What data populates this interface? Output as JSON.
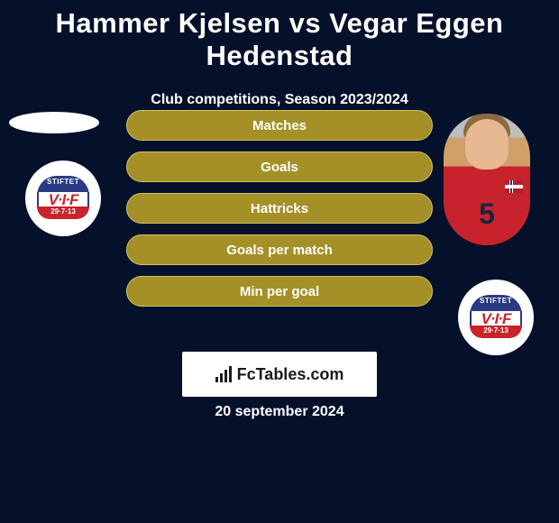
{
  "title": "Hammer Kjelsen vs Vegar Eggen Hedenstad",
  "subtitle": "Club competitions, Season 2023/2024",
  "stats": {
    "items": [
      {
        "label": "Matches"
      },
      {
        "label": "Goals"
      },
      {
        "label": "Hattricks"
      },
      {
        "label": "Goals per match"
      },
      {
        "label": "Min per goal"
      }
    ],
    "pill_bg": "#a59027",
    "pill_border": "#d3c26a",
    "pill_text_color": "#ffffff"
  },
  "left": {
    "club_badge": {
      "top_text": "STIFTET",
      "mid_text": "V·I·F",
      "bottom_text": "29·7·13",
      "top_color": "#2a3a82",
      "mid_color": "#c8232c",
      "bottom_color": "#c8232c"
    }
  },
  "right": {
    "player": {
      "shirt_number": "5",
      "shirt_color": "#c8232c",
      "number_color": "#1a2340"
    },
    "club_badge": {
      "top_text": "STIFTET",
      "mid_text": "V·I·F",
      "bottom_text": "29·7·13",
      "top_color": "#2a3a82",
      "mid_color": "#c8232c",
      "bottom_color": "#c8232c"
    }
  },
  "branding": {
    "label": "FcTables.com",
    "bg": "#ffffff",
    "text_color": "#1a1a1a"
  },
  "date": "20 september 2024",
  "colors": {
    "page_bg": "#05102a",
    "text": "#ffffff"
  }
}
